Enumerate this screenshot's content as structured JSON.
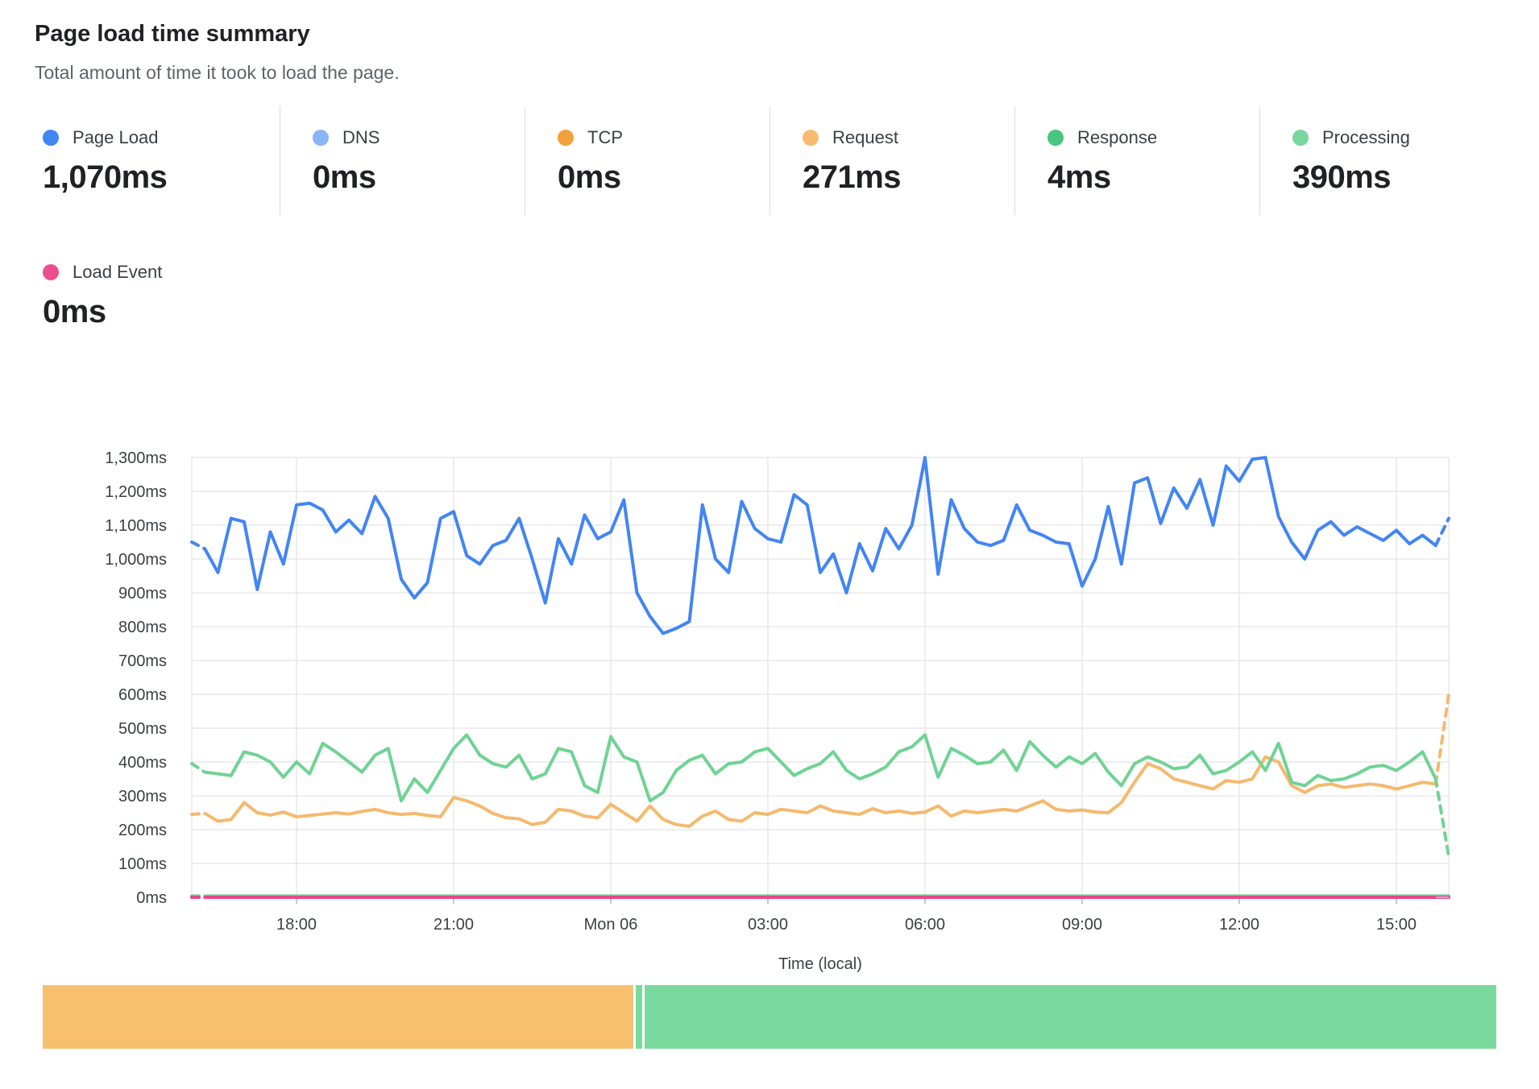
{
  "header": {
    "title": "Page load time summary",
    "subtitle": "Total amount of time it took to load the page."
  },
  "metrics": [
    {
      "id": "page-load",
      "label": "Page Load",
      "value": "1,070ms",
      "dot_color": "#4285f4"
    },
    {
      "id": "dns",
      "label": "DNS",
      "value": "0ms",
      "dot_color": "#8ab4f8"
    },
    {
      "id": "tcp",
      "label": "TCP",
      "value": "0ms",
      "dot_color": "#f0a13c"
    },
    {
      "id": "request",
      "label": "Request",
      "value": "271ms",
      "dot_color": "#f7bc70"
    },
    {
      "id": "response",
      "label": "Response",
      "value": "4ms",
      "dot_color": "#48c57e"
    },
    {
      "id": "processing",
      "label": "Processing",
      "value": "390ms",
      "dot_color": "#79d69f"
    }
  ],
  "load_event": {
    "id": "load-event",
    "label": "Load Event",
    "value": "0ms",
    "dot_color": "#ee4d8f"
  },
  "chart_data": {
    "type": "line",
    "title": "Page load time summary",
    "xlabel": "Time (local)",
    "ylabel": "",
    "ylim": [
      0,
      1300
    ],
    "grid": true,
    "grid_color": "#e8e8e8",
    "axis_text_color": "#3c4043",
    "tick_mark_color": "#c4c7ca",
    "end_stub_color": "#b3b6ba",
    "y_ticks": [
      {
        "v": 0,
        "label": "0ms"
      },
      {
        "v": 100,
        "label": "100ms"
      },
      {
        "v": 200,
        "label": "200ms"
      },
      {
        "v": 300,
        "label": "300ms"
      },
      {
        "v": 400,
        "label": "400ms"
      },
      {
        "v": 500,
        "label": "500ms"
      },
      {
        "v": 600,
        "label": "600ms"
      },
      {
        "v": 700,
        "label": "700ms"
      },
      {
        "v": 800,
        "label": "800ms"
      },
      {
        "v": 900,
        "label": "900ms"
      },
      {
        "v": 1000,
        "label": "1,000ms"
      },
      {
        "v": 1100,
        "label": "1,100ms"
      },
      {
        "v": 1200,
        "label": "1,200ms"
      },
      {
        "v": 1300,
        "label": "1,300ms"
      }
    ],
    "x_ticks": [
      {
        "hour": 2,
        "label": "18:00"
      },
      {
        "hour": 5,
        "label": "21:00"
      },
      {
        "hour": 8,
        "label": "Mon 06"
      },
      {
        "hour": 11,
        "label": "03:00"
      },
      {
        "hour": 14,
        "label": "06:00"
      },
      {
        "hour": 17,
        "label": "09:00"
      },
      {
        "hour": 20,
        "label": "12:00"
      },
      {
        "hour": 23,
        "label": "15:00"
      }
    ],
    "x_domain_hours": 24,
    "points": 97,
    "series": [
      {
        "name": "Request",
        "color": "#f5b96d",
        "dash_lead": true,
        "dash_tail": true,
        "values": [
          245,
          248,
          225,
          230,
          280,
          250,
          243,
          252,
          238,
          242,
          246,
          250,
          246,
          254,
          260,
          250,
          245,
          248,
          242,
          238,
          295,
          285,
          270,
          248,
          235,
          232,
          215,
          222,
          260,
          255,
          240,
          235,
          275,
          250,
          225,
          270,
          230,
          215,
          210,
          240,
          255,
          230,
          225,
          250,
          245,
          260,
          255,
          250,
          270,
          255,
          250,
          245,
          262,
          250,
          255,
          248,
          252,
          270,
          240,
          255,
          250,
          255,
          260,
          255,
          270,
          285,
          260,
          255,
          258,
          252,
          250,
          280,
          340,
          395,
          380,
          350,
          340,
          330,
          320,
          345,
          340,
          350,
          415,
          400,
          330,
          310,
          330,
          335,
          325,
          330,
          335,
          330,
          320,
          330,
          340,
          335,
          600
        ]
      },
      {
        "name": "Processing",
        "color": "#6fd394",
        "dash_lead": true,
        "dash_tail": true,
        "values": [
          395,
          370,
          365,
          360,
          430,
          420,
          400,
          355,
          400,
          365,
          455,
          430,
          400,
          370,
          420,
          440,
          285,
          350,
          310,
          375,
          440,
          480,
          420,
          395,
          385,
          420,
          350,
          365,
          440,
          430,
          330,
          310,
          475,
          415,
          400,
          285,
          310,
          375,
          405,
          420,
          365,
          395,
          400,
          430,
          440,
          400,
          360,
          380,
          395,
          430,
          375,
          350,
          365,
          385,
          430,
          445,
          480,
          355,
          440,
          420,
          395,
          400,
          435,
          375,
          460,
          420,
          385,
          415,
          395,
          425,
          370,
          330,
          395,
          415,
          400,
          380,
          385,
          420,
          365,
          375,
          400,
          430,
          375,
          455,
          340,
          330,
          360,
          345,
          350,
          365,
          385,
          390,
          375,
          400,
          430,
          350,
          120
        ]
      },
      {
        "name": "Response",
        "color": "#6fd394",
        "dash_lead": true,
        "dash_tail": false,
        "constant": 4
      },
      {
        "name": "Load Event",
        "color": "#e2498a",
        "dash_lead": true,
        "dash_tail": false,
        "constant": 0,
        "end_stub": true
      },
      {
        "name": "Page Load",
        "color": "#4285f4",
        "dash_lead": true,
        "dash_tail": true,
        "values": [
          1050,
          1030,
          960,
          1120,
          1110,
          910,
          1080,
          985,
          1160,
          1165,
          1145,
          1080,
          1115,
          1075,
          1185,
          1120,
          940,
          885,
          930,
          1120,
          1140,
          1010,
          985,
          1040,
          1055,
          1120,
          1000,
          870,
          1060,
          985,
          1130,
          1060,
          1080,
          1175,
          900,
          830,
          780,
          795,
          815,
          1160,
          1000,
          960,
          1170,
          1090,
          1060,
          1050,
          1190,
          1160,
          960,
          1015,
          900,
          1045,
          965,
          1090,
          1030,
          1100,
          1300,
          955,
          1175,
          1090,
          1050,
          1040,
          1055,
          1160,
          1085,
          1070,
          1050,
          1045,
          920,
          1000,
          1155,
          985,
          1225,
          1240,
          1105,
          1210,
          1150,
          1235,
          1100,
          1275,
          1230,
          1295,
          1300,
          1125,
          1050,
          1000,
          1085,
          1110,
          1070,
          1095,
          1075,
          1055,
          1085,
          1045,
          1070,
          1040,
          1120
        ]
      }
    ]
  },
  "summary_bar": {
    "segments": [
      {
        "name": "request-portion",
        "color": "#f7c06f",
        "flex": 733
      },
      {
        "name": "processing-sliver",
        "color": "#7ada9e",
        "flex": 8
      },
      {
        "name": "processing-portion",
        "color": "#7ada9e",
        "flex": 1057
      }
    ]
  }
}
